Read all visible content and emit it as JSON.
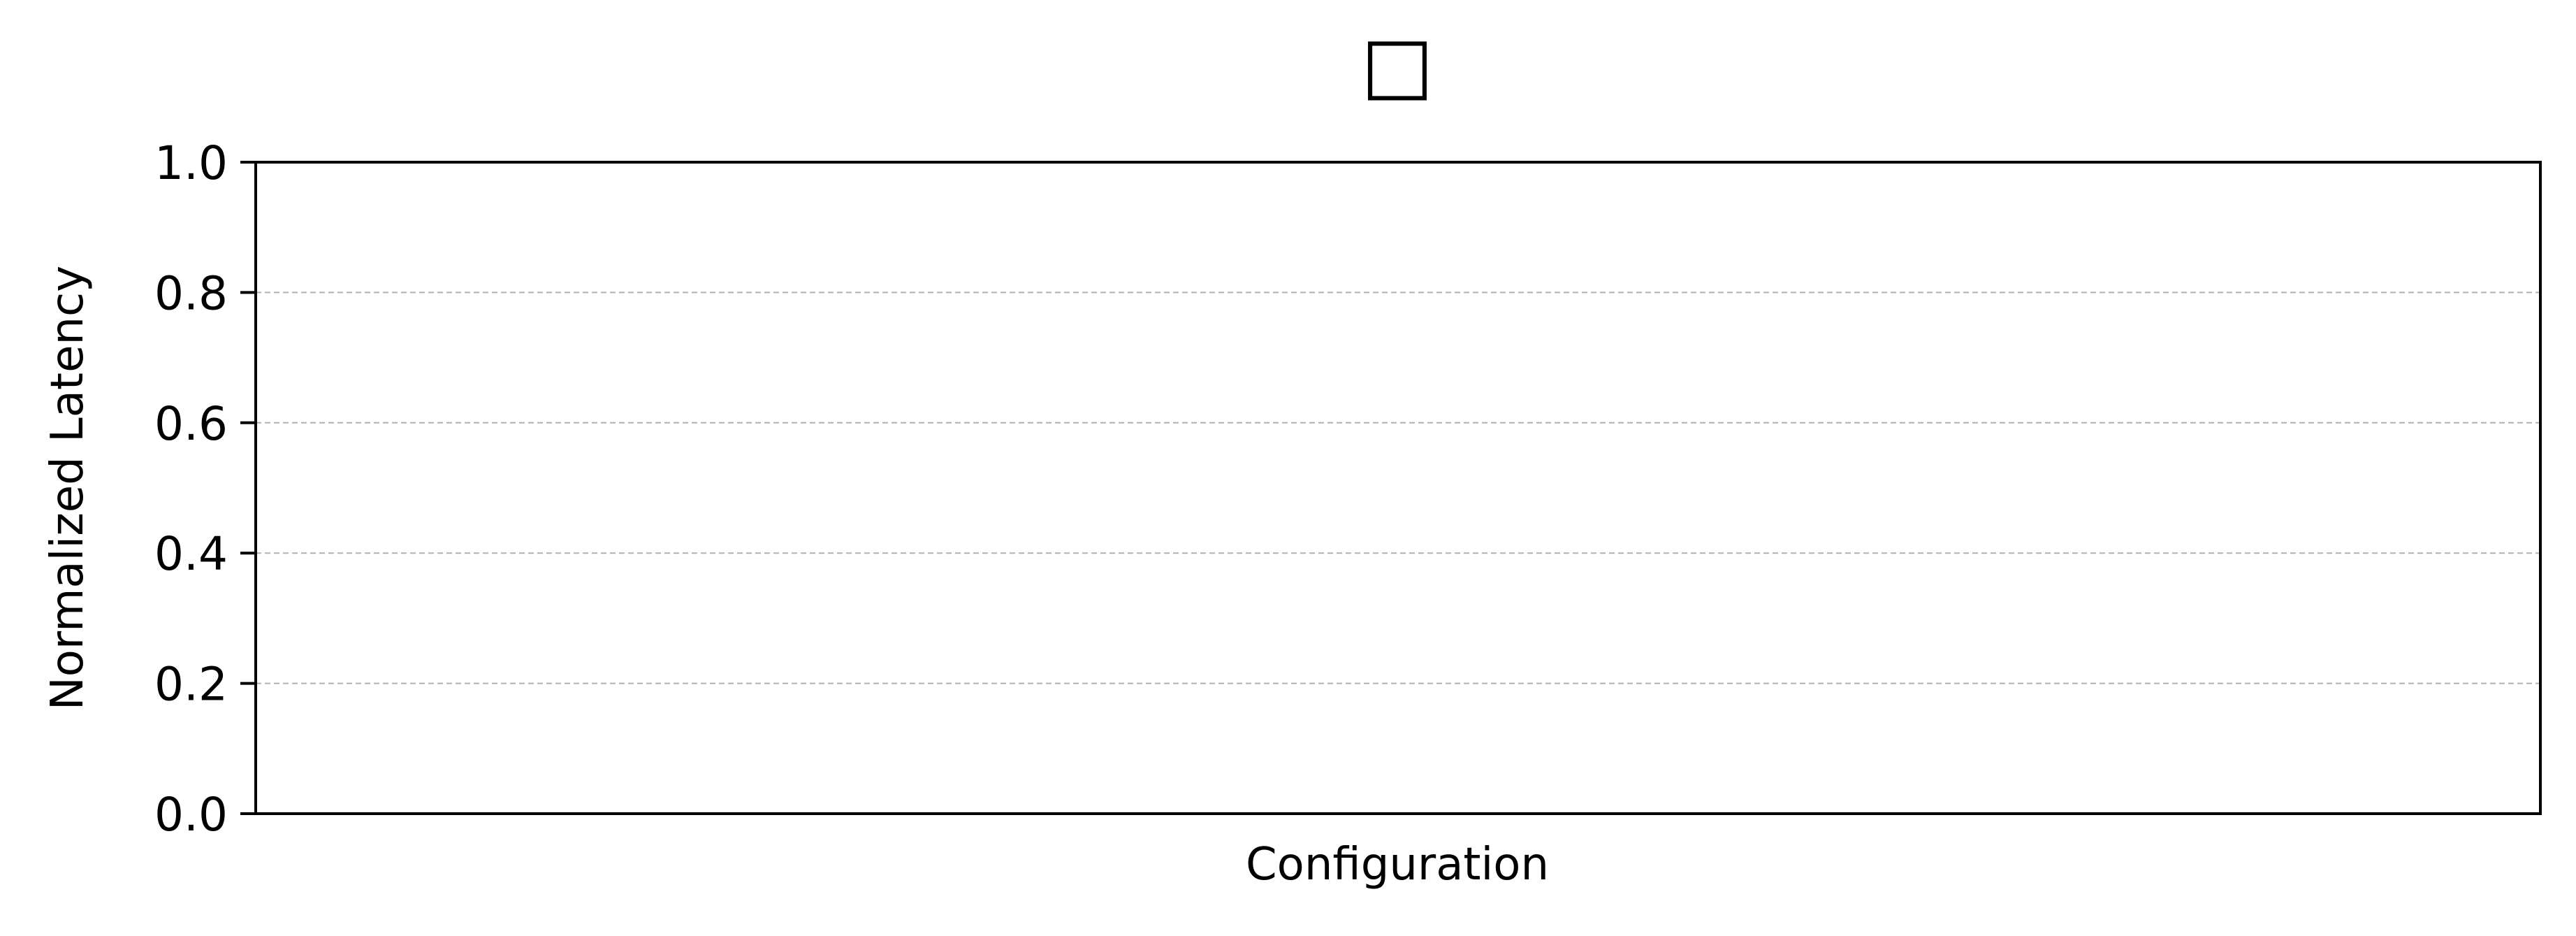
{
  "chart_data": {
    "type": "bar",
    "title": "",
    "legend_marker": "□",
    "xlabel": "Configuration",
    "ylabel": "Normalized Latency",
    "categories": [],
    "series": [],
    "ylim": [
      0,
      1.0
    ],
    "yticks": [
      "0.0",
      "0.2",
      "0.4",
      "0.6",
      "0.8",
      "1.0"
    ],
    "grid": {
      "axis": "y",
      "style": "dashed",
      "color": "#b0b0b0"
    },
    "legend_placement": "top-center"
  }
}
